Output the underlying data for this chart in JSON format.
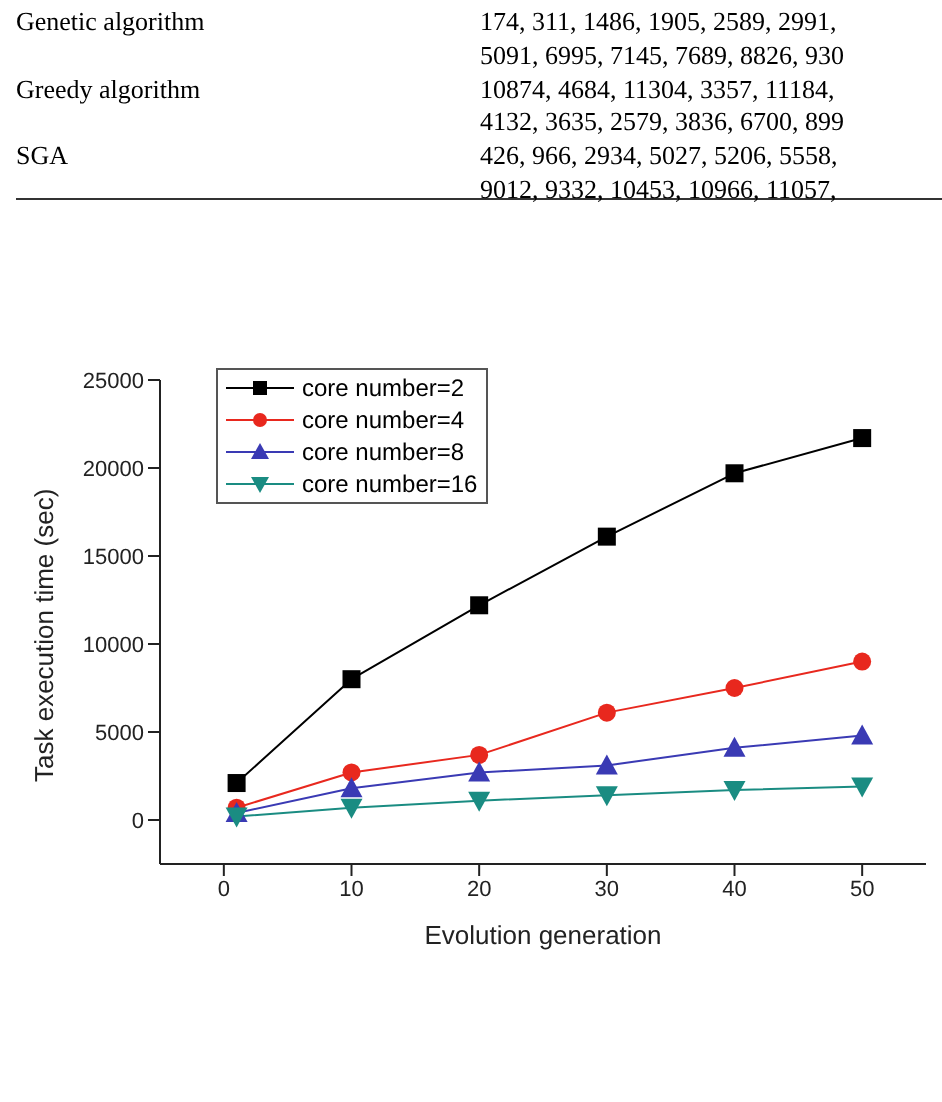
{
  "chart_data": {
    "type": "line",
    "xlabel": "Evolution generation",
    "ylabel": "Task execution time (sec)",
    "annotations": [
      "Genetic algorithm",
      "174, 311, 1486, 1905, 2589, 2991,",
      "5091, 6995, 7145, 7689, 8826, 930",
      "Greedy algorithm",
      "10874, 4684, 11304, 3357, 11184,",
      "4132, 3635, 2579, 3836, 6700, 899",
      "SGA",
      "426, 966, 2934, 5027, 5206, 5558,",
      "9012, 9332, 10453, 10966, 11057,"
    ],
    "x": [
      1,
      10,
      20,
      30,
      40,
      50
    ],
    "series": [
      {
        "name": "core number=2",
        "color": "#000000",
        "marker": "square",
        "values": [
          2100,
          8000,
          12200,
          16100,
          19700,
          21700
        ]
      },
      {
        "name": "core number=4",
        "color": "#e8281e",
        "marker": "circle",
        "values": [
          700,
          2700,
          3700,
          6100,
          7500,
          9000
        ]
      },
      {
        "name": "core number=8",
        "color": "#3a3ab4",
        "marker": "triangle",
        "values": [
          400,
          1800,
          2700,
          3100,
          4100,
          4800
        ]
      },
      {
        "name": "core number=16",
        "color": "#1a8c82",
        "marker": "triangle-down",
        "values": [
          200,
          700,
          1100,
          1400,
          1700,
          1900
        ]
      }
    ],
    "xlim": [
      -5,
      55
    ],
    "xticks": [
      0,
      10,
      20,
      30,
      40,
      50
    ],
    "ylim": [
      -2500,
      25000
    ],
    "yticks": [
      0,
      5000,
      10000,
      15000,
      20000,
      25000
    ],
    "grid": false,
    "legend": "top left",
    "line_style": "solid"
  }
}
